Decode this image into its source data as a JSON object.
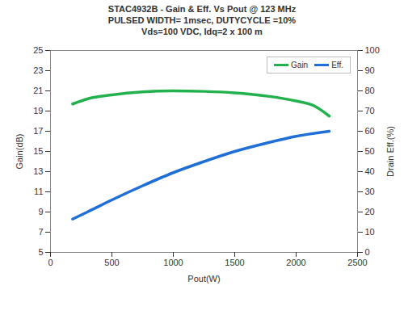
{
  "chart_data": {
    "type": "line",
    "title": "STAC4932B - Gain & Eff. Vs Pout @ 123 MHz",
    "subtitle": "PULSED WIDTH= 1msec, DUTYCYCLE =10%\nVds=100 VDC, Idq=2 x 100 m",
    "xlabel": "Pout(W)",
    "ylabel": "Gain(dB)",
    "y2label": "Drain Eff.(%)",
    "series": [
      {
        "name": "Gain",
        "color": "#22b14c",
        "axis": "y",
        "x": [
          180,
          300,
          500,
          750,
          1000,
          1250,
          1500,
          1750,
          2000,
          2150,
          2270
        ],
        "values": [
          19.7,
          20.2,
          20.6,
          20.9,
          21.0,
          20.95,
          20.8,
          20.5,
          20.0,
          19.5,
          18.5
        ]
      },
      {
        "name": "Eff.",
        "color": "#1f6fd6",
        "axis": "y2",
        "x": [
          180,
          300,
          500,
          750,
          1000,
          1250,
          1500,
          1750,
          2000,
          2270
        ],
        "values": [
          16.5,
          20,
          26,
          33,
          39.5,
          45,
          50,
          54,
          57.5,
          60
        ]
      }
    ],
    "xlim": [
      0,
      2500
    ],
    "xticks": [
      0,
      500,
      1000,
      1500,
      2000,
      2500
    ],
    "ylim": [
      5,
      25
    ],
    "yticks": [
      5,
      7,
      9,
      11,
      13,
      15,
      17,
      19,
      21,
      23,
      25
    ],
    "y2lim": [
      0,
      100
    ],
    "y2ticks": [
      0,
      10,
      20,
      30,
      40,
      50,
      60,
      70,
      80,
      90,
      100
    ],
    "grid": false,
    "legend": "upper right"
  }
}
